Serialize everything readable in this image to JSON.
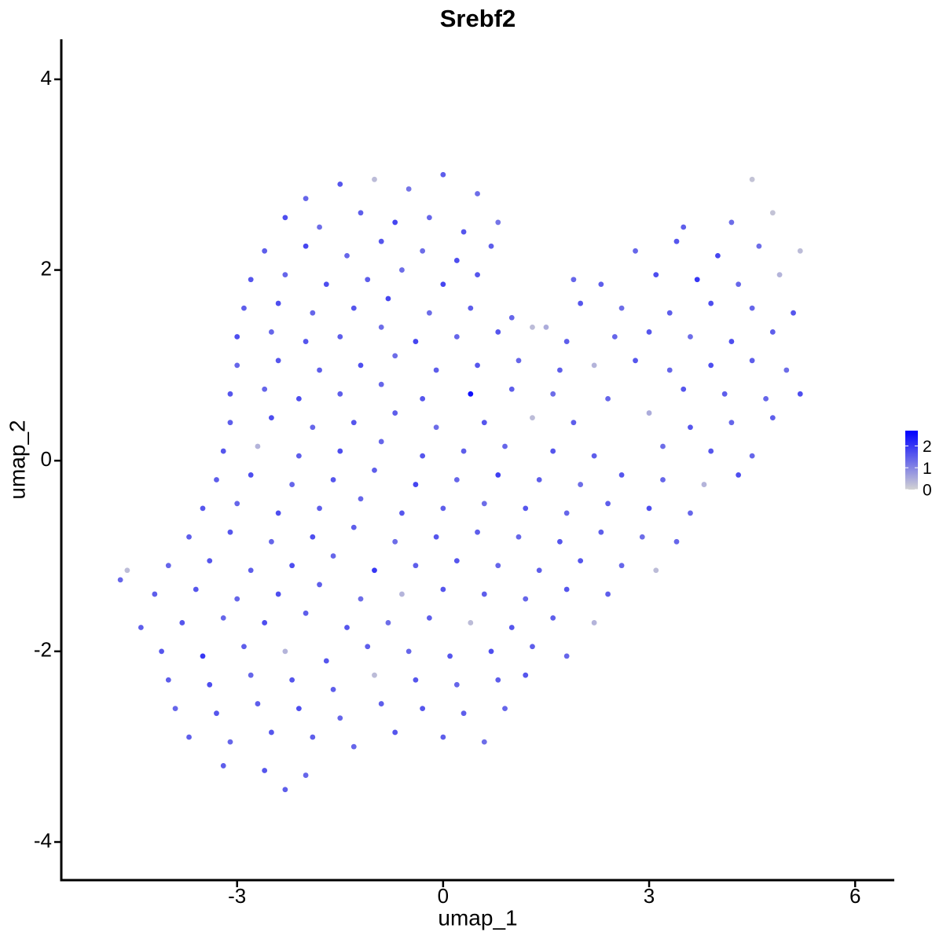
{
  "chart_data": {
    "type": "scatter",
    "title": "Srebf2",
    "x_label": "umap_1",
    "y_label": "umap_2",
    "xlim": [
      -5.56,
      6.57
    ],
    "ylim": [
      -4.4,
      4.42
    ],
    "xticks": [
      -3,
      0,
      3,
      6
    ],
    "yticks": [
      -4,
      -2,
      0,
      2,
      4
    ],
    "color_low": "#d3d3d3",
    "color_high": "#0000ff",
    "colorbar": {
      "lim": [
        0,
        2.7
      ],
      "ticks": [
        0,
        1,
        2
      ]
    },
    "x": [
      -2.0,
      -1.5,
      -1.0,
      -0.5,
      0.0,
      0.5,
      4.5,
      -2.3,
      -1.8,
      -1.2,
      -0.7,
      -0.2,
      0.3,
      0.8,
      3.5,
      4.2,
      4.8,
      -2.6,
      -2.0,
      -1.4,
      -0.9,
      -0.3,
      0.2,
      0.7,
      2.8,
      3.4,
      4.0,
      4.6,
      5.2,
      -2.8,
      -2.3,
      -1.7,
      -1.1,
      -0.6,
      0.0,
      0.5,
      1.9,
      2.3,
      3.1,
      3.7,
      4.3,
      4.9,
      -2.9,
      -2.4,
      -1.9,
      -1.3,
      -0.8,
      -0.2,
      0.4,
      1.0,
      1.5,
      2.0,
      2.6,
      3.3,
      3.9,
      4.5,
      5.1,
      -3.0,
      -2.5,
      -2.0,
      -1.5,
      -0.9,
      -0.4,
      0.2,
      0.8,
      1.3,
      1.8,
      2.5,
      3.0,
      3.6,
      4.2,
      4.8,
      -3.0,
      -2.4,
      -1.8,
      -1.2,
      -0.7,
      -0.1,
      0.5,
      1.1,
      1.7,
      2.2,
      2.8,
      3.3,
      3.9,
      4.5,
      5.0,
      -3.1,
      -2.6,
      -2.1,
      -1.5,
      -0.9,
      -0.3,
      0.4,
      1.0,
      1.6,
      2.4,
      3.5,
      4.1,
      4.7,
      5.2,
      -3.1,
      -2.5,
      -1.9,
      -1.3,
      -0.7,
      -0.1,
      0.6,
      1.3,
      1.9,
      3.0,
      3.6,
      4.2,
      4.8,
      -3.2,
      -2.7,
      -2.1,
      -1.5,
      -0.9,
      -0.3,
      0.3,
      0.9,
      1.6,
      2.2,
      3.2,
      3.9,
      4.5,
      -3.3,
      -2.8,
      -2.2,
      -1.6,
      -1.0,
      -0.4,
      0.2,
      0.8,
      1.4,
      2.0,
      2.6,
      3.2,
      3.8,
      4.3,
      -3.5,
      -3.0,
      -2.4,
      -1.8,
      -1.2,
      -0.6,
      0.0,
      0.6,
      1.2,
      1.8,
      2.4,
      3.0,
      3.6,
      -3.7,
      -3.1,
      -2.5,
      -1.9,
      -1.3,
      -0.7,
      -0.1,
      0.5,
      1.1,
      1.7,
      2.3,
      2.9,
      3.4,
      -4.0,
      -3.4,
      -2.8,
      -2.2,
      -1.6,
      -1.0,
      -0.4,
      0.2,
      0.8,
      1.4,
      2.0,
      2.6,
      3.1,
      -4.7,
      -4.6,
      -4.2,
      -3.6,
      -3.0,
      -2.4,
      -1.8,
      -1.2,
      -0.6,
      0.0,
      0.6,
      1.2,
      1.8,
      2.4,
      -4.4,
      -3.8,
      -3.2,
      -2.6,
      -2.0,
      -1.4,
      -0.8,
      -0.2,
      0.4,
      1.0,
      1.6,
      2.2,
      -4.1,
      -3.5,
      -2.9,
      -2.3,
      -1.7,
      -1.1,
      -0.5,
      0.1,
      0.7,
      1.3,
      1.8,
      -4.0,
      -3.4,
      -2.8,
      -2.2,
      -1.6,
      -1.0,
      -0.4,
      0.2,
      0.8,
      1.2,
      -3.9,
      -3.3,
      -2.7,
      -2.1,
      -1.5,
      -0.9,
      -0.3,
      0.3,
      0.9,
      -3.7,
      -3.1,
      -2.5,
      -1.9,
      -1.3,
      -0.7,
      0.0,
      0.6,
      -3.2,
      -2.6,
      -2.0,
      -2.3
    ],
    "y": [
      2.75,
      2.9,
      2.95,
      2.85,
      3.0,
      2.8,
      2.95,
      2.55,
      2.45,
      2.6,
      2.5,
      2.55,
      2.4,
      2.5,
      2.45,
      2.5,
      2.6,
      2.2,
      2.25,
      2.15,
      2.3,
      2.2,
      2.1,
      2.25,
      2.2,
      2.3,
      2.15,
      2.25,
      2.2,
      1.9,
      1.95,
      1.85,
      1.9,
      2.0,
      1.85,
      1.95,
      1.9,
      1.85,
      1.95,
      1.9,
      1.85,
      1.95,
      1.6,
      1.65,
      1.55,
      1.6,
      1.7,
      1.55,
      1.6,
      1.5,
      1.4,
      1.65,
      1.6,
      1.55,
      1.65,
      1.6,
      1.55,
      1.3,
      1.35,
      1.25,
      1.3,
      1.4,
      1.25,
      1.3,
      1.35,
      1.4,
      1.25,
      1.3,
      1.35,
      1.3,
      1.25,
      1.35,
      1.0,
      1.05,
      0.95,
      1.0,
      1.1,
      0.95,
      1.0,
      1.05,
      0.95,
      1.0,
      1.05,
      0.95,
      1.0,
      1.05,
      0.95,
      0.7,
      0.75,
      0.65,
      0.7,
      0.8,
      0.65,
      0.7,
      0.75,
      0.7,
      0.65,
      0.75,
      0.7,
      0.65,
      0.7,
      0.4,
      0.45,
      0.35,
      0.4,
      0.5,
      0.35,
      0.4,
      0.45,
      0.4,
      0.5,
      0.35,
      0.4,
      0.45,
      0.1,
      0.15,
      0.05,
      0.1,
      0.2,
      0.05,
      0.1,
      0.15,
      0.1,
      0.05,
      0.15,
      0.1,
      0.05,
      -0.2,
      -0.15,
      -0.25,
      -0.2,
      -0.1,
      -0.25,
      -0.2,
      -0.15,
      -0.2,
      -0.25,
      -0.15,
      -0.2,
      -0.25,
      -0.15,
      -0.5,
      -0.45,
      -0.55,
      -0.5,
      -0.4,
      -0.55,
      -0.5,
      -0.45,
      -0.5,
      -0.55,
      -0.45,
      -0.5,
      -0.55,
      -0.8,
      -0.75,
      -0.85,
      -0.8,
      -0.7,
      -0.85,
      -0.8,
      -0.75,
      -0.8,
      -0.85,
      -0.75,
      -0.8,
      -0.85,
      -1.1,
      -1.05,
      -1.15,
      -1.1,
      -1.0,
      -1.15,
      -1.1,
      -1.05,
      -1.1,
      -1.15,
      -1.05,
      -1.1,
      -1.15,
      -1.25,
      -1.15,
      -1.4,
      -1.35,
      -1.45,
      -1.4,
      -1.3,
      -1.45,
      -1.4,
      -1.35,
      -1.4,
      -1.45,
      -1.35,
      -1.4,
      -1.75,
      -1.7,
      -1.65,
      -1.7,
      -1.6,
      -1.75,
      -1.7,
      -1.65,
      -1.7,
      -1.75,
      -1.65,
      -1.7,
      -2.0,
      -2.05,
      -1.95,
      -2.0,
      -2.1,
      -1.95,
      -2.0,
      -2.05,
      -2.0,
      -1.95,
      -2.05,
      -2.3,
      -2.35,
      -2.25,
      -2.3,
      -2.4,
      -2.25,
      -2.3,
      -2.35,
      -2.3,
      -2.25,
      -2.6,
      -2.65,
      -2.55,
      -2.6,
      -2.7,
      -2.55,
      -2.6,
      -2.65,
      -2.6,
      -2.9,
      -2.95,
      -2.85,
      -2.9,
      -3.0,
      -2.85,
      -2.9,
      -2.95,
      -3.2,
      -3.25,
      -3.3,
      -3.45
    ],
    "values": [
      1.4,
      1.6,
      0.3,
      1.2,
      1.5,
      1.3,
      0.2,
      1.7,
      1.3,
      1.5,
      1.8,
      1.4,
      1.6,
      1.2,
      1.5,
      1.3,
      0.2,
      1.5,
      1.8,
      1.4,
      1.6,
      1.3,
      1.7,
      1.5,
      1.4,
      1.6,
      1.8,
      1.3,
      0.3,
      1.6,
      1.4,
      1.7,
      1.5,
      1.3,
      1.8,
      1.6,
      1.4,
      1.5,
      1.7,
      2.0,
      1.4,
      0.4,
      1.5,
      1.7,
      1.4,
      1.6,
      1.8,
      1.3,
      1.5,
      1.4,
      0.5,
      1.6,
      1.3,
      1.5,
      1.7,
      1.4,
      1.6,
      1.7,
      1.4,
      1.6,
      1.5,
      1.3,
      1.8,
      1.4,
      1.6,
      0.3,
      1.5,
      1.4,
      1.6,
      1.3,
      1.7,
      1.5,
      1.4,
      1.6,
      1.5,
      1.7,
      1.3,
      1.5,
      1.6,
      1.4,
      1.5,
      0.4,
      1.6,
      1.4,
      1.7,
      1.5,
      1.3,
      1.6,
      1.4,
      1.7,
      1.5,
      1.4,
      1.6,
      2.5,
      1.5,
      1.3,
      1.4,
      1.6,
      1.5,
      1.4,
      1.7,
      1.5,
      1.7,
      1.4,
      1.6,
      1.5,
      1.3,
      1.6,
      0.3,
      1.5,
      0.5,
      1.6,
      1.4,
      1.5,
      1.6,
      0.4,
      1.5,
      1.7,
      1.4,
      1.6,
      1.5,
      1.4,
      1.6,
      1.5,
      1.3,
      1.6,
      1.4,
      1.5,
      1.7,
      1.4,
      1.6,
      1.5,
      1.8,
      1.4,
      1.9,
      1.5,
      1.3,
      1.6,
      1.4,
      0.4,
      1.7,
      1.6,
      1.4,
      1.7,
      1.5,
      1.4,
      1.6,
      1.5,
      1.3,
      1.6,
      1.4,
      1.5,
      1.7,
      1.4,
      1.5,
      1.6,
      1.4,
      1.7,
      1.5,
      1.3,
      1.6,
      1.5,
      1.4,
      1.6,
      1.5,
      1.3,
      1.4,
      1.4,
      1.6,
      1.5,
      1.7,
      1.4,
      2.0,
      1.5,
      1.6,
      1.4,
      1.5,
      1.6,
      1.4,
      0.3,
      1.4,
      0.3,
      1.5,
      1.6,
      1.4,
      1.7,
      1.5,
      1.3,
      0.4,
      1.6,
      1.5,
      1.4,
      1.6,
      1.5,
      1.5,
      1.6,
      1.4,
      1.7,
      1.5,
      1.6,
      1.3,
      1.5,
      0.3,
      1.6,
      1.5,
      0.4,
      1.6,
      2.0,
      1.5,
      0.4,
      1.6,
      1.5,
      1.4,
      1.6,
      1.7,
      1.5,
      1.4,
      1.5,
      1.7,
      1.4,
      1.6,
      1.5,
      0.3,
      1.6,
      1.4,
      1.5,
      1.6,
      1.4,
      1.6,
      1.5,
      1.7,
      1.4,
      1.5,
      1.6,
      1.5,
      1.4,
      1.5,
      1.4,
      1.6,
      1.5,
      1.4,
      1.6,
      1.5,
      1.3,
      1.5,
      1.6,
      1.4,
      1.5
    ]
  }
}
